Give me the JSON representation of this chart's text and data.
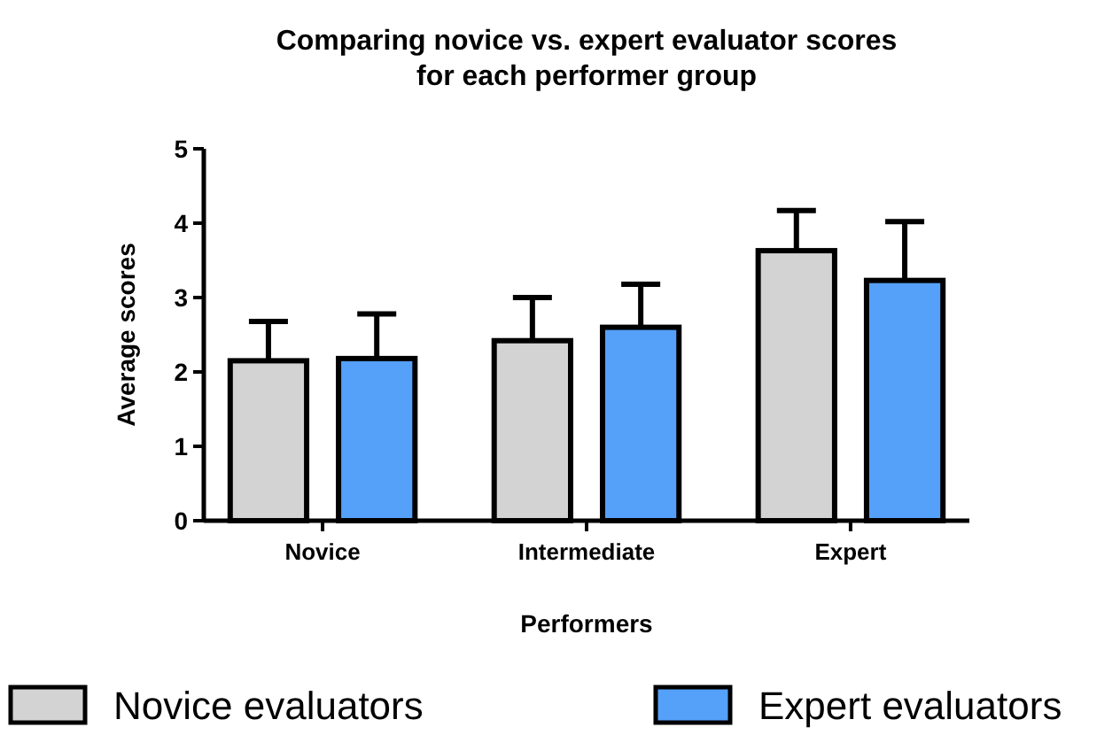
{
  "chart_data": {
    "type": "bar",
    "title": "Comparing novice vs. expert evaluator scores\nfor each performer group",
    "xlabel": "Performers",
    "ylabel": "Average scores",
    "categories": [
      "Novice",
      "Intermediate",
      "Expert"
    ],
    "series": [
      {
        "name": "Novice evaluators",
        "color": "#d3d3d3",
        "values": [
          2.15,
          2.42,
          3.63
        ],
        "errors": [
          [
            2.15,
            2.68
          ],
          [
            2.42,
            3.0
          ],
          [
            3.63,
            4.17
          ]
        ]
      },
      {
        "name": "Expert evaluators",
        "color": "#55a0f8",
        "values": [
          2.18,
          2.6,
          3.23
        ],
        "errors": [
          [
            2.18,
            2.78
          ],
          [
            2.6,
            3.18
          ],
          [
            3.23,
            4.02
          ]
        ]
      }
    ],
    "ylim": [
      0,
      5
    ],
    "yticks": [
      0,
      1,
      2,
      3,
      4,
      5
    ],
    "grid": false,
    "legend": "bottom"
  }
}
